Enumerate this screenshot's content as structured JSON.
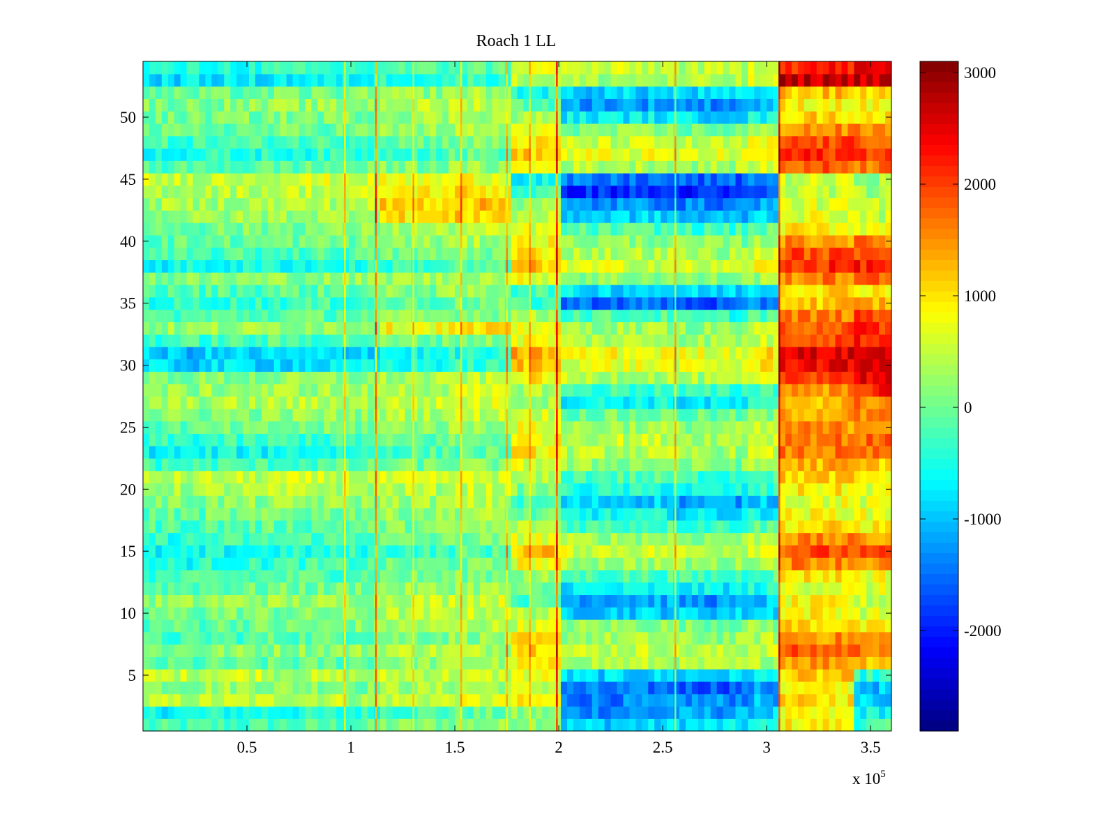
{
  "chart_data": {
    "type": "heatmap",
    "title": "Roach 1 LL",
    "xlabel": "",
    "ylabel": "",
    "x_multiplier": "x 10",
    "x_exponent": "5",
    "x_range": [
      0,
      360000
    ],
    "y_range": [
      0.5,
      54.5
    ],
    "x_ticks": [
      {
        "value": 50000,
        "label": "0.5"
      },
      {
        "value": 100000,
        "label": "1"
      },
      {
        "value": 150000,
        "label": "1.5"
      },
      {
        "value": 200000,
        "label": "2"
      },
      {
        "value": 250000,
        "label": "2.5"
      },
      {
        "value": 300000,
        "label": "3"
      },
      {
        "value": 350000,
        "label": "3.5"
      }
    ],
    "y_ticks": [
      {
        "value": 5,
        "label": "5"
      },
      {
        "value": 10,
        "label": "10"
      },
      {
        "value": 15,
        "label": "15"
      },
      {
        "value": 20,
        "label": "20"
      },
      {
        "value": 25,
        "label": "25"
      },
      {
        "value": 30,
        "label": "30"
      },
      {
        "value": 35,
        "label": "35"
      },
      {
        "value": 40,
        "label": "40"
      },
      {
        "value": 45,
        "label": "45"
      },
      {
        "value": 50,
        "label": "50"
      }
    ],
    "colorbar": {
      "range": [
        -2900,
        3100
      ],
      "ticks": [
        {
          "value": 3000,
          "label": "3000"
        },
        {
          "value": 2000,
          "label": "2000"
        },
        {
          "value": 1000,
          "label": "1000"
        },
        {
          "value": 0,
          "label": "0"
        },
        {
          "value": -1000,
          "label": "-1000"
        },
        {
          "value": -2000,
          "label": "-2000"
        }
      ],
      "colormap": "jet"
    },
    "rows": 54,
    "segments_x": [
      0,
      30000,
      60000,
      97000,
      112000,
      145000,
      175000,
      200000,
      255000,
      290000,
      305000,
      340000,
      360000
    ],
    "segment_values": [
      [
        -300,
        -250,
        -200,
        -150,
        100,
        150,
        300,
        -900,
        -800,
        -600,
        900,
        -300
      ],
      [
        -600,
        -500,
        -500,
        -400,
        -200,
        -100,
        100,
        -1300,
        -1200,
        -900,
        700,
        -600
      ],
      [
        400,
        450,
        500,
        300,
        500,
        600,
        800,
        -1400,
        -1300,
        -1100,
        1000,
        -900
      ],
      [
        200,
        300,
        200,
        100,
        300,
        350,
        500,
        -1500,
        -1600,
        -1300,
        800,
        -1000
      ],
      [
        500,
        600,
        400,
        300,
        500,
        500,
        700,
        -900,
        -900,
        -700,
        1100,
        -400
      ],
      [
        -200,
        -150,
        -100,
        0,
        200,
        300,
        800,
        400,
        300,
        400,
        1500,
        1300
      ],
      [
        100,
        150,
        200,
        250,
        450,
        400,
        1200,
        500,
        400,
        600,
        1800,
        1700
      ],
      [
        -300,
        -200,
        -100,
        -50,
        100,
        200,
        900,
        300,
        200,
        400,
        1500,
        1400
      ],
      [
        -100,
        0,
        0,
        100,
        300,
        400,
        600,
        200,
        100,
        200,
        1100,
        800
      ],
      [
        0,
        100,
        50,
        150,
        400,
        500,
        400,
        -900,
        -900,
        -800,
        900,
        600
      ],
      [
        200,
        300,
        250,
        300,
        500,
        600,
        -200,
        -1100,
        -1300,
        -1000,
        800,
        500
      ],
      [
        -100,
        -50,
        0,
        100,
        200,
        300,
        -100,
        -700,
        -700,
        -500,
        700,
        600
      ],
      [
        -300,
        -200,
        -150,
        -100,
        0,
        100,
        200,
        -200,
        -300,
        -100,
        1000,
        800
      ],
      [
        -500,
        -400,
        -300,
        -250,
        -100,
        0,
        800,
        300,
        200,
        400,
        1600,
        1500
      ],
      [
        -700,
        -600,
        -500,
        -400,
        -300,
        -200,
        1200,
        600,
        500,
        800,
        1900,
        1800
      ],
      [
        -400,
        -300,
        -200,
        -150,
        -50,
        50,
        700,
        300,
        200,
        500,
        1500,
        1400
      ],
      [
        -200,
        -150,
        -100,
        -50,
        100,
        200,
        400,
        -200,
        -300,
        -100,
        1000,
        900
      ],
      [
        -100,
        0,
        50,
        100,
        200,
        300,
        -100,
        -600,
        -800,
        -600,
        800,
        700
      ],
      [
        100,
        150,
        200,
        200,
        300,
        400,
        -300,
        -900,
        -1200,
        -900,
        700,
        600
      ],
      [
        300,
        350,
        400,
        350,
        400,
        500,
        100,
        -500,
        -600,
        -400,
        900,
        700
      ],
      [
        400,
        450,
        500,
        450,
        500,
        550,
        300,
        -200,
        -300,
        -100,
        1100,
        900
      ],
      [
        -300,
        -250,
        -200,
        -150,
        0,
        100,
        600,
        200,
        100,
        300,
        1300,
        1200
      ],
      [
        -700,
        -600,
        -500,
        -400,
        -200,
        -100,
        900,
        400,
        300,
        500,
        1600,
        1600
      ],
      [
        -400,
        -350,
        -300,
        -250,
        -100,
        0,
        800,
        500,
        400,
        600,
        1700,
        1700
      ],
      [
        -100,
        -50,
        0,
        50,
        200,
        300,
        700,
        300,
        200,
        400,
        1500,
        1600
      ],
      [
        100,
        150,
        200,
        200,
        400,
        500,
        600,
        0,
        -100,
        100,
        1400,
        1500
      ],
      [
        300,
        350,
        400,
        350,
        500,
        600,
        300,
        -600,
        -800,
        -500,
        1300,
        1600
      ],
      [
        200,
        250,
        300,
        250,
        400,
        500,
        400,
        -300,
        -400,
        -200,
        1500,
        2200
      ],
      [
        100,
        100,
        150,
        150,
        300,
        400,
        900,
        400,
        300,
        500,
        2100,
        2500
      ],
      [
        -900,
        -850,
        -800,
        -700,
        -500,
        -400,
        1200,
        700,
        600,
        900,
        2400,
        2700
      ],
      [
        -1000,
        -950,
        -900,
        -800,
        -600,
        -500,
        1300,
        800,
        700,
        1000,
        2500,
        2600
      ],
      [
        -300,
        -250,
        -200,
        -150,
        0,
        100,
        800,
        400,
        300,
        500,
        2000,
        2200
      ],
      [
        200,
        250,
        300,
        300,
        800,
        900,
        800,
        300,
        200,
        400,
        1900,
        2100
      ],
      [
        -200,
        -150,
        -100,
        -50,
        100,
        200,
        300,
        -200,
        -400,
        -100,
        1600,
        1900
      ],
      [
        -400,
        -350,
        -300,
        -250,
        -100,
        0,
        -300,
        -1500,
        -1700,
        -1400,
        1200,
        1300
      ],
      [
        -200,
        -150,
        -100,
        -50,
        100,
        200,
        -200,
        -800,
        -900,
        -700,
        1100,
        1000
      ],
      [
        100,
        150,
        200,
        200,
        300,
        400,
        700,
        200,
        100,
        300,
        1600,
        1700
      ],
      [
        -600,
        -550,
        -500,
        -450,
        -300,
        -200,
        1200,
        600,
        500,
        800,
        2100,
        2200
      ],
      [
        -300,
        -250,
        -200,
        -150,
        0,
        100,
        1000,
        400,
        300,
        600,
        1900,
        2000
      ],
      [
        -100,
        -50,
        0,
        50,
        200,
        300,
        800,
        200,
        100,
        300,
        1500,
        1600
      ],
      [
        0,
        50,
        100,
        150,
        300,
        400,
        600,
        -200,
        -300,
        -100,
        900,
        800
      ],
      [
        200,
        250,
        300,
        400,
        1000,
        1100,
        400,
        -900,
        -1100,
        -800,
        700,
        500
      ],
      [
        300,
        350,
        400,
        450,
        1100,
        1200,
        300,
        -1300,
        -1400,
        -1100,
        600,
        400
      ],
      [
        400,
        450,
        500,
        500,
        900,
        1000,
        -300,
        -1900,
        -2000,
        -1700,
        500,
        300
      ],
      [
        500,
        550,
        600,
        550,
        700,
        800,
        -600,
        -1500,
        -1600,
        -1300,
        500,
        300
      ],
      [
        -200,
        -150,
        -100,
        -50,
        100,
        200,
        800,
        400,
        300,
        600,
        1800,
        1700
      ],
      [
        -500,
        -450,
        -400,
        -350,
        -200,
        -100,
        1100,
        700,
        600,
        900,
        2100,
        2100
      ],
      [
        -300,
        -250,
        -200,
        -150,
        0,
        100,
        900,
        500,
        400,
        700,
        1900,
        1900
      ],
      [
        -100,
        -50,
        0,
        50,
        200,
        300,
        600,
        100,
        0,
        200,
        1500,
        1500
      ],
      [
        0,
        50,
        100,
        100,
        300,
        400,
        300,
        -700,
        -800,
        -600,
        1100,
        1000
      ],
      [
        100,
        150,
        200,
        200,
        400,
        500,
        -100,
        -1200,
        -1300,
        -1000,
        900,
        800
      ],
      [
        -100,
        -50,
        0,
        50,
        200,
        300,
        -500,
        -900,
        -900,
        -700,
        1200,
        1100
      ],
      [
        -800,
        -750,
        -700,
        -600,
        -400,
        -300,
        400,
        300,
        300,
        600,
        2700,
        2700
      ],
      [
        -500,
        -450,
        -400,
        -350,
        -200,
        -100,
        700,
        500,
        400,
        700,
        2200,
        2400
      ]
    ],
    "vertical_streaks": [
      {
        "x": 97000,
        "delta": 900
      },
      {
        "x": 112000,
        "delta": 1400
      },
      {
        "x": 130000,
        "delta": 700
      },
      {
        "x": 153000,
        "delta": 900
      },
      {
        "x": 175000,
        "delta": 600
      },
      {
        "x": 186000,
        "delta": 700
      },
      {
        "x": 199000,
        "delta": 1700
      },
      {
        "x": 256000,
        "delta": 1100
      },
      {
        "x": 306000,
        "delta": 1000
      }
    ]
  }
}
